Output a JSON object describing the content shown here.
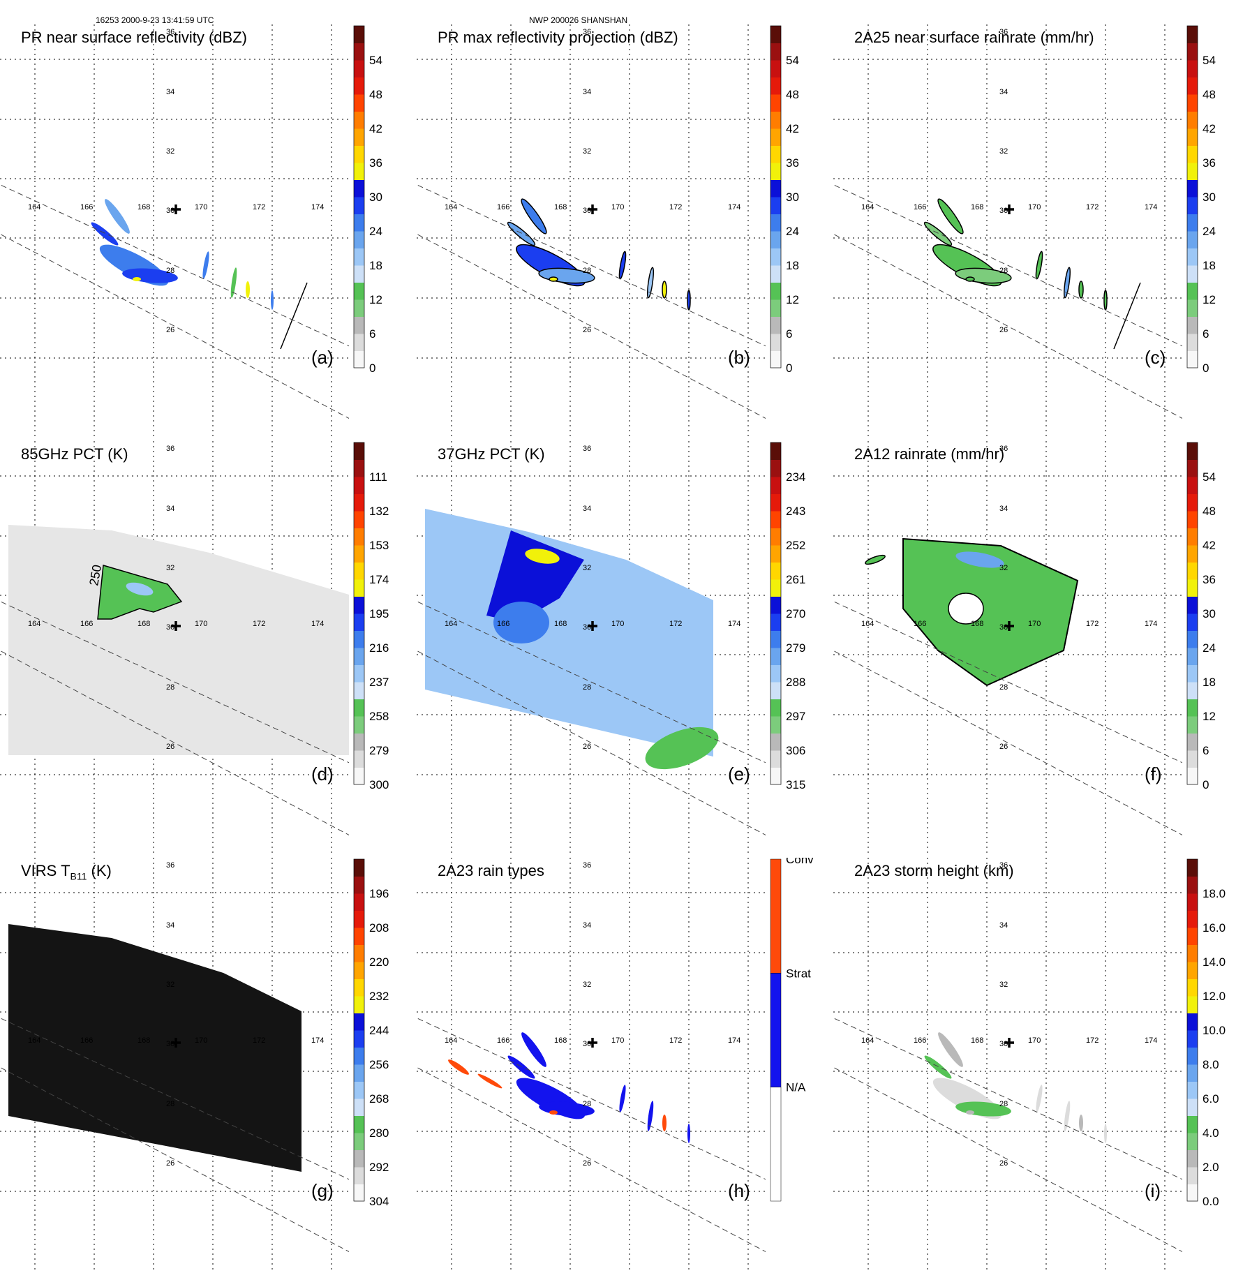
{
  "header": {
    "left": "16253 2000-9-23 13:41:59 UTC",
    "center": "NWP 200026 SHANSHAN"
  },
  "map": {
    "lon_labels": [
      "164",
      "166",
      "168",
      "170",
      "172",
      "174"
    ],
    "lat_labels": [
      "36",
      "34",
      "32",
      "30",
      "28",
      "26"
    ]
  },
  "panels": [
    {
      "title": "PR near surface reflectivity (dBZ)",
      "label": "(a)",
      "colorbar": [
        "0",
        "6",
        "12",
        "18",
        "24",
        "30",
        "36",
        "42",
        "48",
        "54"
      ]
    },
    {
      "title": "PR max reflectivity projection (dBZ)",
      "label": "(b)",
      "colorbar": [
        "0",
        "6",
        "12",
        "18",
        "24",
        "30",
        "36",
        "42",
        "48",
        "54"
      ]
    },
    {
      "title": "2A25 near surface rainrate (mm/hr)",
      "label": "(c)",
      "colorbar": [
        "0",
        "6",
        "12",
        "18",
        "24",
        "30",
        "36",
        "42",
        "48",
        "54"
      ]
    },
    {
      "title": "85GHz PCT (K)",
      "label": "(d)",
      "contour_label": "250",
      "colorbar": [
        "300",
        "279",
        "258",
        "237",
        "216",
        "195",
        "174",
        "153",
        "132",
        "111"
      ]
    },
    {
      "title": "37GHz PCT (K)",
      "label": "(e)",
      "colorbar": [
        "315",
        "306",
        "297",
        "288",
        "279",
        "270",
        "261",
        "252",
        "243",
        "234"
      ]
    },
    {
      "title": "2A12 rainrate (mm/hr)",
      "label": "(f)",
      "colorbar": [
        "0",
        "6",
        "12",
        "18",
        "24",
        "30",
        "36",
        "42",
        "48",
        "54"
      ]
    },
    {
      "title_main": "VIRS T",
      "title_sub": "B11",
      "title_tail": " (K)",
      "label": "(g)",
      "colorbar": [
        "304",
        "292",
        "280",
        "268",
        "256",
        "244",
        "232",
        "220",
        "208",
        "196"
      ]
    },
    {
      "title": "2A23 rain types",
      "label": "(h)",
      "colorbar": [
        "N/A",
        "Strat",
        "Conv"
      ]
    },
    {
      "title": "2A23 storm height (km)",
      "label": "(i)",
      "colorbar": [
        "0.0",
        "2.0",
        "4.0",
        "6.0",
        "8.0",
        "10.0",
        "12.0",
        "14.0",
        "16.0",
        "18.0"
      ]
    }
  ],
  "colors": {
    "scale": [
      "#f7f7f7",
      "#dcdcdc",
      "#b9b9b9",
      "#7ccc7c",
      "#55c255",
      "#cde0f7",
      "#9cc7f6",
      "#6aa5ee",
      "#3d7ded",
      "#1b3ef0",
      "#0b10d8",
      "#f1f10a",
      "#ffd700",
      "#ffa500",
      "#ff7d00",
      "#ff4400",
      "#e51a0a",
      "#c81010",
      "#9a1010",
      "#5a0e08"
    ],
    "rain_types": [
      "#ffffff",
      "#1313ee",
      "#ff4a0a"
    ]
  }
}
